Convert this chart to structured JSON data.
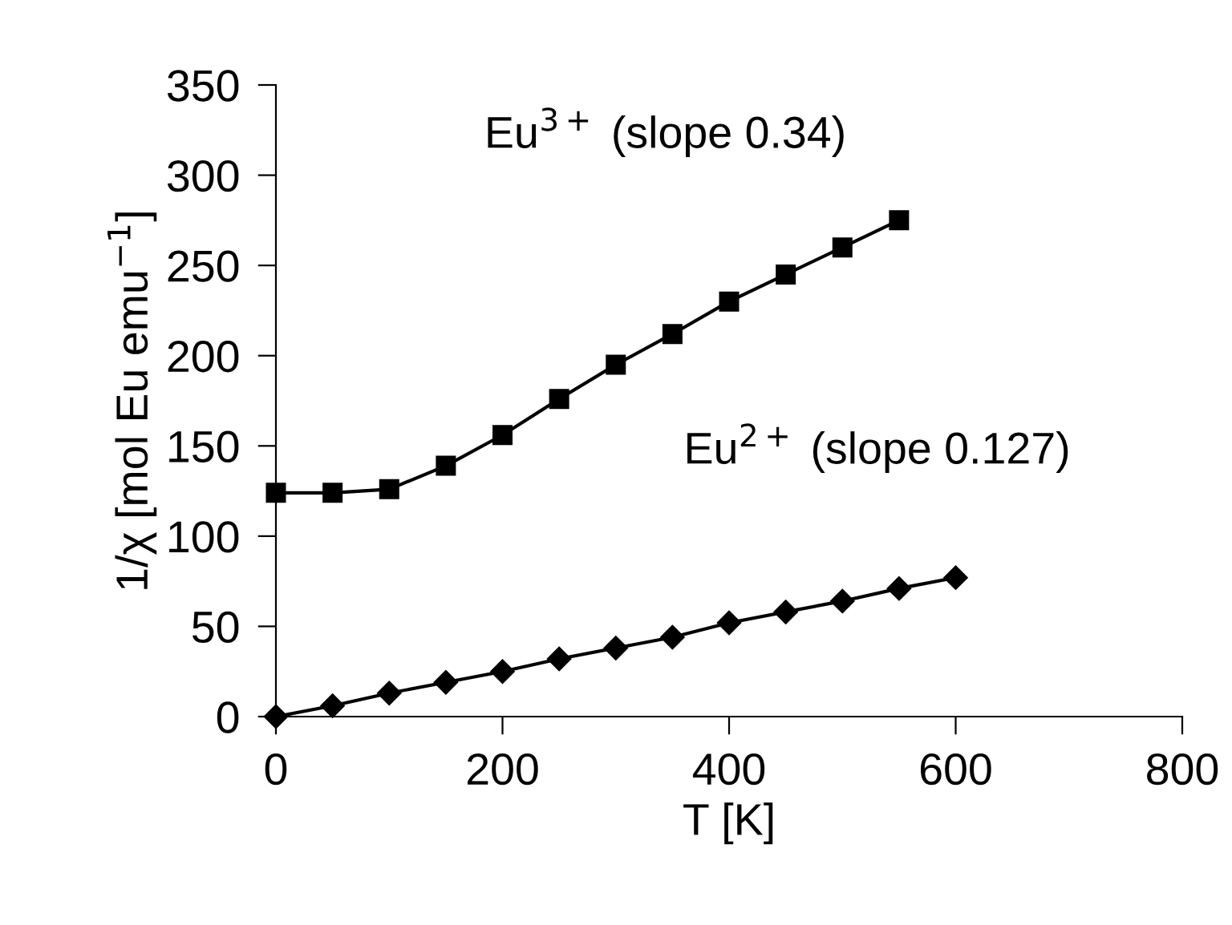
{
  "chart_data": {
    "type": "line",
    "xlabel": "T [K]",
    "ylabel": "1/χ [mol Eu emu$^{−1}$]",
    "annotations": [
      "Eu$^{3+}$ (slope 0.34)",
      "Eu$^{2+}$ (slope 0.127)"
    ],
    "series": [
      {
        "color": "#000000",
        "marker": "square",
        "x": [
          0,
          50,
          100,
          150,
          200,
          250,
          300,
          350,
          400,
          450,
          500,
          550
        ],
        "values": [
          124,
          124,
          126,
          139,
          156,
          176,
          195,
          212,
          230,
          245,
          260,
          275
        ]
      },
      {
        "color": "#000000",
        "marker": "diamond",
        "x": [
          0,
          50,
          100,
          150,
          200,
          250,
          300,
          350,
          400,
          450,
          500,
          550,
          600
        ],
        "values": [
          0,
          6,
          13,
          19,
          25,
          32,
          38,
          44,
          52,
          58,
          64,
          71,
          77
        ]
      }
    ],
    "xlim": [
      0,
      800
    ],
    "xticks": [
      0,
      200,
      400,
      600,
      800
    ],
    "ylim": [
      0,
      350
    ],
    "yticks": [
      0,
      50,
      100,
      150,
      200,
      250,
      300,
      350
    ],
    "grid": false,
    "legend": false,
    "line_style": "solid"
  }
}
